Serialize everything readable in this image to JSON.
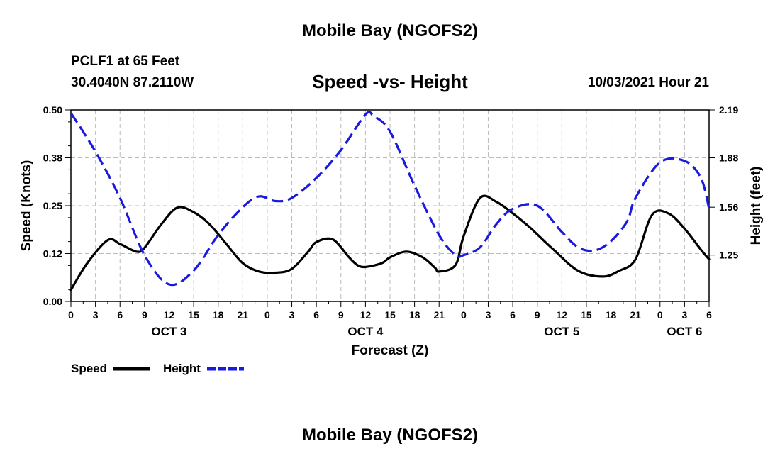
{
  "header": {
    "title": "Mobile Bay (NGOFS2)",
    "station": "PCLF1 at 65 Feet",
    "coords": "30.4040N  87.2110W",
    "subtitle": "Speed -vs- Height",
    "datetime": "10/03/2021 Hour 21"
  },
  "footer": {
    "title": "Mobile Bay (NGOFS2)"
  },
  "legend": {
    "speed_label": "Speed",
    "height_label": "Height"
  },
  "colors": {
    "speed": "#000000",
    "height": "#1a1adf",
    "grid": "#bbbbbb"
  },
  "chart_data": {
    "type": "line",
    "title": "Speed -vs- Height",
    "xlabel": "Forecast (Z)",
    "ylabel": "Speed (Knots)",
    "y2label": "Height (feet)",
    "xlim": [
      0,
      78
    ],
    "ylim": [
      0,
      0.5
    ],
    "y2lim": [
      0.95,
      2.19
    ],
    "x_ticks": [
      0,
      3,
      6,
      9,
      12,
      15,
      18,
      21,
      24,
      27,
      30,
      33,
      36,
      39,
      42,
      45,
      48,
      51,
      54,
      57,
      60,
      63,
      66,
      69,
      72,
      75,
      78
    ],
    "x_tick_labels": [
      "0",
      "3",
      "6",
      "9",
      "12",
      "15",
      "18",
      "21",
      "0",
      "3",
      "6",
      "9",
      "12",
      "15",
      "18",
      "21",
      "0",
      "3",
      "6",
      "9",
      "12",
      "15",
      "18",
      "21",
      "0",
      "3",
      "6"
    ],
    "date_labels": [
      {
        "x": 12,
        "label": "OCT 3"
      },
      {
        "x": 36,
        "label": "OCT 4"
      },
      {
        "x": 60,
        "label": "OCT 5"
      },
      {
        "x": 75,
        "label": "OCT 6"
      }
    ],
    "y_ticks": [
      0,
      0.125,
      0.25,
      0.375,
      0.5
    ],
    "y_tick_labels": [
      "0.00",
      "0.12",
      "0.25",
      "0.38",
      "0.50"
    ],
    "y2_ticks": [
      1.25,
      1.56,
      1.88,
      2.19
    ],
    "y2_tick_labels": [
      "1.25",
      "1.56",
      "1.88",
      "2.19"
    ],
    "grid": true,
    "series": [
      {
        "name": "Speed",
        "axis": "left",
        "style": "solid",
        "x": [
          0,
          2,
          4.5,
          6,
          8,
          9,
          11,
          13,
          15,
          17,
          19,
          21,
          23,
          25,
          27,
          29,
          30,
          32,
          34,
          35,
          36,
          38,
          39,
          41,
          43,
          44.5,
          45,
          47,
          48,
          50,
          52,
          54,
          56,
          57,
          59,
          62,
          65,
          67,
          69,
          71,
          73,
          75,
          77,
          78
        ],
        "y": [
          0.03,
          0.1,
          0.16,
          0.15,
          0.13,
          0.14,
          0.2,
          0.245,
          0.233,
          0.2,
          0.15,
          0.1,
          0.078,
          0.075,
          0.085,
          0.13,
          0.155,
          0.162,
          0.115,
          0.095,
          0.09,
          0.1,
          0.115,
          0.13,
          0.115,
          0.088,
          0.078,
          0.095,
          0.17,
          0.27,
          0.26,
          0.23,
          0.195,
          0.175,
          0.135,
          0.08,
          0.065,
          0.08,
          0.11,
          0.225,
          0.23,
          0.19,
          0.135,
          0.11
        ]
      },
      {
        "name": "Height",
        "axis": "right",
        "style": "dashed",
        "x": [
          0,
          3,
          6,
          9,
          12,
          15,
          18,
          21,
          23,
          25,
          27,
          30,
          33,
          36,
          37,
          39,
          42,
          45,
          47,
          48,
          50,
          52,
          54,
          57,
          60,
          62,
          64,
          66,
          68,
          69,
          72,
          75,
          77,
          78
        ],
        "y": [
          2.17,
          1.92,
          1.62,
          1.25,
          1.06,
          1.15,
          1.38,
          1.56,
          1.63,
          1.6,
          1.62,
          1.75,
          1.93,
          2.16,
          2.15,
          2.05,
          1.7,
          1.38,
          1.25,
          1.25,
          1.3,
          1.45,
          1.55,
          1.57,
          1.4,
          1.3,
          1.28,
          1.34,
          1.47,
          1.62,
          1.85,
          1.86,
          1.75,
          1.55
        ]
      }
    ]
  }
}
